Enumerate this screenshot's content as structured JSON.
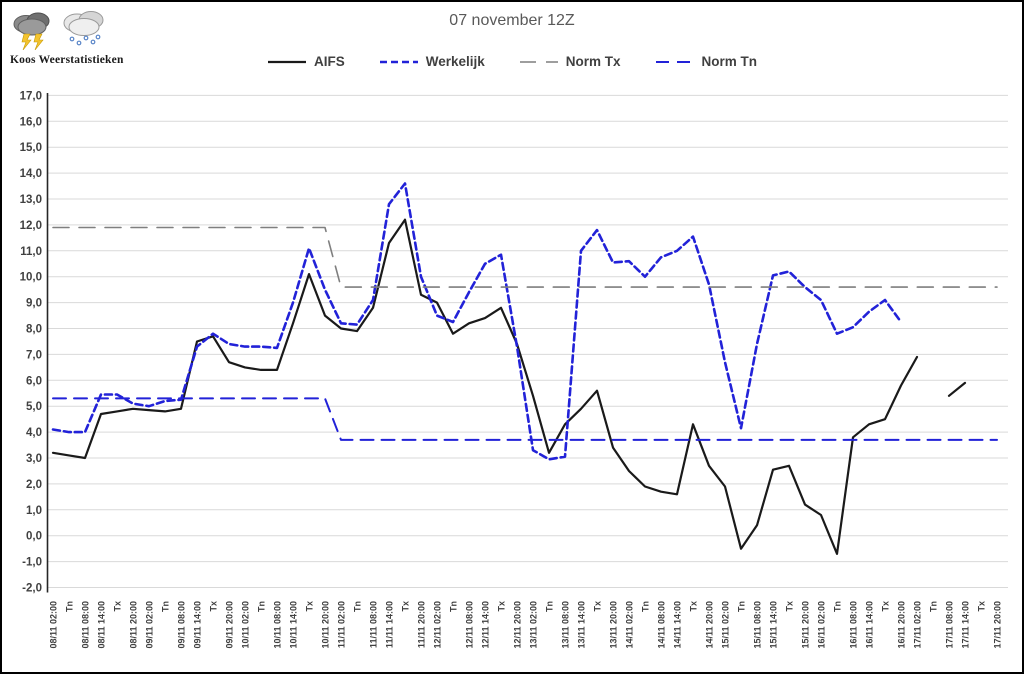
{
  "window_title": "07 november 12Z",
  "branding": {
    "name": "Koos Weerstatistieken",
    "icons": [
      "storm-cloud-icon",
      "snow-cloud-icon"
    ]
  },
  "legend": {
    "items": [
      {
        "label": "AIFS",
        "color": "#1a1a1a",
        "dash": "",
        "width": 2.2
      },
      {
        "label": "Werkelijk",
        "color": "#2222d8",
        "dash": "7,4",
        "width": 2.6
      },
      {
        "label": "Norm Tx",
        "color": "#7f7f7f",
        "dash": "16,10",
        "width": 1.6
      },
      {
        "label": "Norm Tn",
        "color": "#2222d8",
        "dash": "13,8",
        "width": 2.0
      }
    ]
  },
  "chart_data": {
    "type": "line",
    "title": "07 november 12Z",
    "xlabel": "",
    "ylabel": "",
    "ylim": [
      -2.0,
      17.0
    ],
    "ytick_step": 1.0,
    "ytick_decimal_separator": ",",
    "grid": true,
    "legend_position": "top",
    "categories": [
      "08/11 02:00",
      "Tn",
      "08/11 08:00",
      "08/11 14:00",
      "Tx",
      "08/11 20:00",
      "09/11 02:00",
      "Tn",
      "09/11 08:00",
      "09/11 14:00",
      "Tx",
      "09/11 20:00",
      "10/11 02:00",
      "Tn",
      "10/11 08:00",
      "10/11 14:00",
      "Tx",
      "10/11 20:00",
      "11/11 02:00",
      "Tn",
      "11/11 08:00",
      "11/11 14:00",
      "Tx",
      "11/11 20:00",
      "12/11 02:00",
      "Tn",
      "12/11 08:00",
      "12/11 14:00",
      "Tx",
      "12/11 20:00",
      "13/11 02:00",
      "Tn",
      "13/11 08:00",
      "13/11 14:00",
      "Tx",
      "13/11 20:00",
      "14/11 02:00",
      "Tn",
      "14/11 08:00",
      "14/11 14:00",
      "Tx",
      "14/11 20:00",
      "15/11 02:00",
      "Tn",
      "15/11 08:00",
      "15/11 14:00",
      "Tx",
      "15/11 20:00",
      "16/11 02:00",
      "Tn",
      "16/11 08:00",
      "16/11 14:00",
      "Tx",
      "16/11 20:00",
      "17/11 02:00",
      "Tn",
      "17/11 08:00",
      "17/11 14:00",
      "Tx",
      "17/11 20:00"
    ],
    "series": [
      {
        "name": "AIFS",
        "color": "#1a1a1a",
        "dash": "",
        "width": 2.2,
        "values": [
          3.2,
          3.1,
          3.0,
          4.7,
          4.8,
          4.9,
          4.85,
          4.8,
          4.9,
          7.5,
          7.7,
          6.7,
          6.5,
          6.4,
          6.4,
          8.2,
          10.1,
          8.5,
          8.0,
          7.9,
          8.8,
          11.3,
          12.2,
          9.3,
          9.0,
          7.8,
          8.2,
          8.4,
          8.8,
          7.4,
          5.4,
          3.2,
          4.3,
          4.9,
          5.6,
          3.4,
          2.5,
          1.9,
          1.7,
          1.6,
          4.3,
          2.7,
          1.9,
          -0.5,
          0.4,
          2.55,
          2.7,
          1.2,
          0.8,
          -0.7,
          3.8,
          4.3,
          4.5,
          5.8,
          6.9,
          null,
          5.4,
          5.9,
          null,
          null
        ]
      },
      {
        "name": "Werkelijk",
        "color": "#2222d8",
        "dash": "7,4",
        "width": 2.6,
        "values": [
          4.1,
          4.0,
          4.0,
          5.45,
          5.45,
          5.1,
          5.0,
          5.2,
          5.25,
          7.3,
          7.8,
          7.4,
          7.3,
          7.3,
          7.25,
          9.0,
          11.1,
          9.5,
          8.2,
          8.15,
          9.1,
          12.8,
          13.6,
          10.0,
          8.5,
          8.25,
          9.4,
          10.5,
          10.85,
          7.3,
          3.3,
          2.95,
          3.05,
          11.0,
          11.8,
          10.55,
          10.6,
          10.0,
          10.75,
          11.0,
          11.55,
          9.7,
          6.7,
          4.15,
          7.4,
          10.05,
          10.2,
          9.6,
          9.1,
          7.8,
          8.05,
          8.65,
          9.1,
          8.25,
          null,
          null,
          null,
          null,
          null,
          null
        ]
      },
      {
        "name": "Norm Tx",
        "color": "#7f7f7f",
        "dash": "16,10",
        "width": 1.6,
        "step": {
          "value_before": 11.9,
          "value_after": 9.6,
          "last_index_before": 17
        }
      },
      {
        "name": "Norm Tn",
        "color": "#2222d8",
        "dash": "13,8",
        "width": 2.0,
        "step": {
          "value_before": 5.3,
          "value_after": 3.7,
          "last_index_before": 17
        }
      }
    ]
  },
  "layout_colors": {
    "gridline": "#d9d9d9",
    "axis_line": "#262626",
    "tick_text": "#404040",
    "title_text": "#595959"
  }
}
